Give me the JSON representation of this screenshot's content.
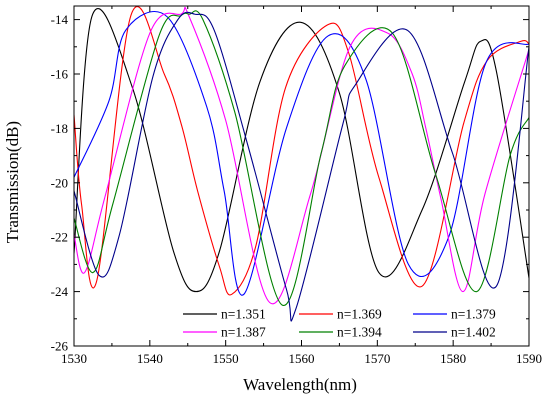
{
  "chart_data": {
    "type": "line",
    "xlabel": "Wavelength(nm)",
    "ylabel": "Transmission(dB)",
    "xlim": [
      1530,
      1590
    ],
    "ylim": [
      -26,
      -13.5
    ],
    "xticks": [
      1530,
      1540,
      1550,
      1560,
      1570,
      1580,
      1590
    ],
    "yticks": [
      -26,
      -24,
      -22,
      -20,
      -18,
      -16,
      -14
    ],
    "grid": false,
    "legend_position": "bottom-center",
    "series": [
      {
        "name": "n=1.351",
        "color": "#000000",
        "x": [
          1530.0,
          1532.4,
          1537.7,
          1543.1,
          1546.1,
          1549.2,
          1554.5,
          1559.9,
          1565.0,
          1570.2,
          1575.9,
          1581.5,
          1583.6,
          1585.7,
          1590.0
        ],
        "y": [
          -22.6,
          -13.85,
          -16.5,
          -22.5,
          -24.0,
          -22.5,
          -16.3,
          -14.1,
          -16.7,
          -23.3,
          -21.0,
          -16.3,
          -14.8,
          -15.9,
          -23.5
        ]
      },
      {
        "name": "n=1.369",
        "color": "#ff0000",
        "x": [
          1530.0,
          1531.0,
          1533.0,
          1537.5,
          1541.9,
          1544.2,
          1546.3,
          1549.2,
          1550.8,
          1554.0,
          1557.9,
          1563.4,
          1566.2,
          1570.2,
          1575.9,
          1581.4,
          1584.5,
          1588.9,
          1590.0
        ],
        "y": [
          -17.5,
          -20.8,
          -23.6,
          -13.85,
          -16.0,
          -17.9,
          -20.3,
          -23.1,
          -24.1,
          -22.3,
          -16.5,
          -14.2,
          -15.2,
          -19.8,
          -23.8,
          -17.8,
          -15.5,
          -14.8,
          -14.9
        ]
      },
      {
        "name": "n=1.379",
        "color": "#0000ff",
        "x": [
          1530.0,
          1534.6,
          1536.8,
          1542.3,
          1547.5,
          1549.8,
          1552.4,
          1558.0,
          1563.5,
          1568.5,
          1574.1,
          1579.4,
          1584.3,
          1590.0
        ],
        "y": [
          -19.8,
          -17.0,
          -14.4,
          -13.9,
          -17.2,
          -20.3,
          -24.1,
          -18.0,
          -14.6,
          -16.2,
          -23.0,
          -22.0,
          -15.6,
          -14.9
        ]
      },
      {
        "name": "n=1.387",
        "color": "#ff00ff",
        "x": [
          1530.0,
          1531.4,
          1534.1,
          1540.0,
          1544.1,
          1545.2,
          1550.0,
          1555.8,
          1561.2,
          1566.4,
          1571.4,
          1574.6,
          1576.4,
          1578.4,
          1581.3,
          1584.2,
          1590.0
        ],
        "y": [
          -21.9,
          -23.3,
          -20.5,
          -14.5,
          -13.8,
          -13.9,
          -17.7,
          -24.4,
          -20.4,
          -15.0,
          -14.5,
          -16.0,
          -18.0,
          -20.6,
          -24.0,
          -20.4,
          -15.1
        ]
      },
      {
        "name": "n=1.394",
        "color": "#008000",
        "x": [
          1530.0,
          1532.5,
          1535.1,
          1541.2,
          1544.1,
          1545.2,
          1547.0,
          1551.2,
          1557.5,
          1562.6,
          1565.7,
          1572.0,
          1577.7,
          1583.1,
          1587.5,
          1590.0
        ],
        "y": [
          -21.3,
          -23.3,
          -20.8,
          -14.6,
          -13.85,
          -13.8,
          -14.0,
          -17.4,
          -24.5,
          -18.9,
          -15.7,
          -14.5,
          -19.7,
          -24.0,
          -19.0,
          -17.6
        ]
      },
      {
        "name": "n=1.402",
        "color": "#00008b",
        "x": [
          1530.0,
          1533.3,
          1536.0,
          1540.4,
          1543.7,
          1545.9,
          1548.5,
          1553.0,
          1558.0,
          1559.3,
          1565.4,
          1567.1,
          1574.0,
          1579.9,
          1585.7,
          1590.0
        ],
        "y": [
          -20.3,
          -23.4,
          -21.9,
          -16.1,
          -14.0,
          -13.8,
          -14.4,
          -18.7,
          -23.9,
          -24.6,
          -17.9,
          -16.4,
          -14.4,
          -18.9,
          -23.8,
          -15.0
        ]
      }
    ]
  }
}
